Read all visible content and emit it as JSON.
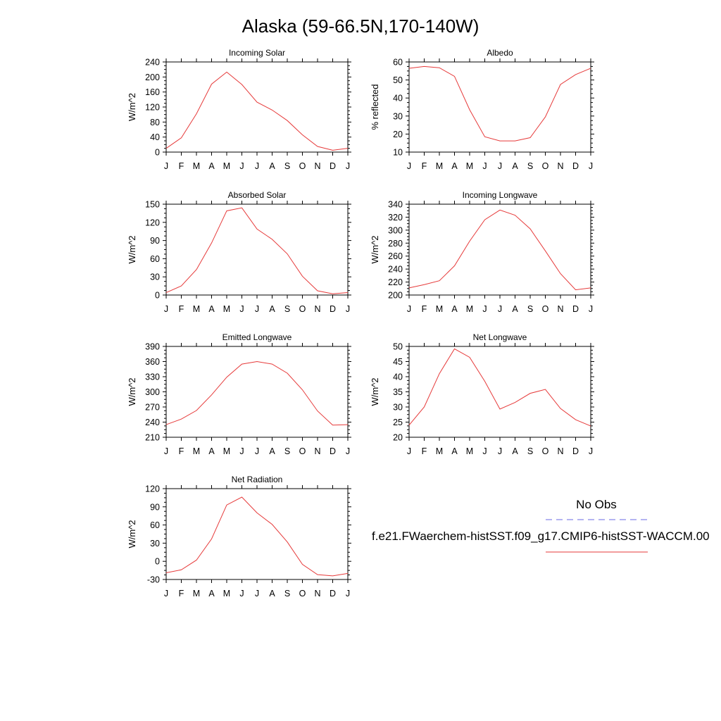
{
  "figure": {
    "title": "Alaska (59-66.5N,170-140W)"
  },
  "legend": {
    "obs_label": "No Obs",
    "obs_color": "#6a6ae6",
    "model_label": "f.e21.FWaerchem-histSST.f09_g17.CMIP6-histSST-WACCM.00",
    "model_color": "#e63a3a"
  },
  "chart_data": [
    {
      "type": "line",
      "title": "Incoming Solar",
      "ylabel": "W/m^2",
      "xlabel": "",
      "x": [
        "J",
        "F",
        "M",
        "A",
        "M",
        "J",
        "J",
        "A",
        "S",
        "O",
        "N",
        "D",
        "J"
      ],
      "ylim": [
        0,
        240
      ],
      "yticks": [
        0,
        40,
        80,
        120,
        160,
        200,
        240
      ],
      "grid": false,
      "series": [
        {
          "values": [
            10,
            38,
            102,
            181,
            213,
            180,
            133,
            112,
            84,
            46,
            15,
            5,
            10
          ]
        }
      ]
    },
    {
      "type": "line",
      "title": "Albedo",
      "ylabel": "% reflected",
      "xlabel": "",
      "x": [
        "J",
        "F",
        "M",
        "A",
        "M",
        "J",
        "J",
        "A",
        "S",
        "O",
        "N",
        "D",
        "J"
      ],
      "ylim": [
        10,
        60
      ],
      "yticks": [
        10,
        20,
        30,
        40,
        50,
        60
      ],
      "grid": false,
      "series": [
        {
          "values": [
            56.5,
            57.5,
            56.8,
            52,
            33.5,
            18.5,
            16.2,
            16.2,
            18,
            29.5,
            47.5,
            53,
            56.5
          ]
        }
      ]
    },
    {
      "type": "line",
      "title": "Absorbed Solar",
      "ylabel": "W/m^2",
      "xlabel": "",
      "x": [
        "J",
        "F",
        "M",
        "A",
        "M",
        "J",
        "J",
        "A",
        "S",
        "O",
        "N",
        "D",
        "J"
      ],
      "ylim": [
        0,
        150
      ],
      "yticks": [
        0,
        30,
        60,
        90,
        120,
        150
      ],
      "grid": false,
      "series": [
        {
          "values": [
            4,
            15,
            42,
            86,
            139,
            144,
            109,
            92,
            68,
            31,
            7,
            2,
            4
          ]
        }
      ]
    },
    {
      "type": "line",
      "title": "Incoming Longwave",
      "ylabel": "W/m^2",
      "xlabel": "",
      "x": [
        "J",
        "F",
        "M",
        "A",
        "M",
        "J",
        "J",
        "A",
        "S",
        "O",
        "N",
        "D",
        "J"
      ],
      "ylim": [
        200,
        340
      ],
      "yticks": [
        200,
        220,
        240,
        260,
        280,
        300,
        320,
        340
      ],
      "grid": false,
      "series": [
        {
          "values": [
            211,
            216,
            222,
            245,
            283,
            316,
            331,
            323,
            302,
            268,
            233,
            208,
            211
          ]
        }
      ]
    },
    {
      "type": "line",
      "title": "Emitted Longwave",
      "ylabel": "W/m^2",
      "xlabel": "",
      "x": [
        "J",
        "F",
        "M",
        "A",
        "M",
        "J",
        "J",
        "A",
        "S",
        "O",
        "N",
        "D",
        "J"
      ],
      "ylim": [
        210,
        390
      ],
      "yticks": [
        210,
        240,
        270,
        300,
        330,
        360,
        390
      ],
      "grid": false,
      "series": [
        {
          "values": [
            235,
            246,
            263,
            294,
            329,
            355,
            360,
            355,
            337,
            304,
            262,
            234,
            235
          ]
        }
      ]
    },
    {
      "type": "line",
      "title": "Net Longwave",
      "ylabel": "W/m^2",
      "xlabel": "",
      "x": [
        "J",
        "F",
        "M",
        "A",
        "M",
        "J",
        "J",
        "A",
        "S",
        "O",
        "N",
        "D",
        "J"
      ],
      "ylim": [
        20,
        50
      ],
      "yticks": [
        20,
        25,
        30,
        35,
        40,
        45,
        50
      ],
      "grid": false,
      "series": [
        {
          "values": [
            24,
            30,
            41,
            49.2,
            46.4,
            38.5,
            29.3,
            31.5,
            34.5,
            35.8,
            29.5,
            25.8,
            23.7
          ]
        }
      ]
    },
    {
      "type": "line",
      "title": "Net Radiation",
      "ylabel": "W/m^2",
      "xlabel": "",
      "x": [
        "J",
        "F",
        "M",
        "A",
        "M",
        "J",
        "J",
        "A",
        "S",
        "O",
        "N",
        "D",
        "J"
      ],
      "ylim": [
        -30,
        120
      ],
      "yticks": [
        -30,
        0,
        30,
        60,
        90,
        120
      ],
      "grid": false,
      "series": [
        {
          "values": [
            -19,
            -14,
            2,
            37,
            93,
            106,
            80,
            61,
            32,
            -5,
            -22,
            -24,
            -20
          ]
        }
      ]
    }
  ]
}
